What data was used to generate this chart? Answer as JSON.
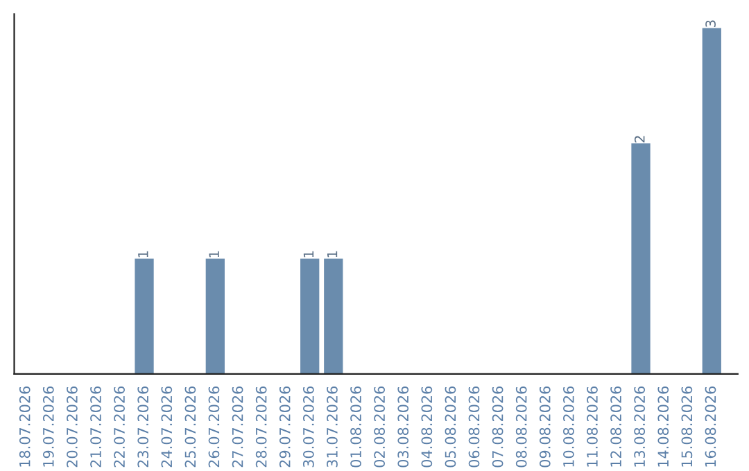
{
  "chart_data": {
    "type": "bar",
    "categories": [
      "18.07.2026",
      "19.07.2026",
      "20.07.2026",
      "21.07.2026",
      "22.07.2026",
      "23.07.2026",
      "24.07.2026",
      "25.07.2026",
      "26.07.2026",
      "27.07.2026",
      "28.07.2026",
      "29.07.2026",
      "30.07.2026",
      "31.07.2026",
      "01.08.2026",
      "02.08.2026",
      "03.08.2026",
      "04.08.2026",
      "05.08.2026",
      "06.08.2026",
      "07.08.2026",
      "08.08.2026",
      "09.08.2026",
      "10.08.2026",
      "11.08.2026",
      "12.08.2026",
      "13.08.2026",
      "14.08.2026",
      "15.08.2026",
      "16.08.2026"
    ],
    "values": [
      0,
      0,
      0,
      0,
      0,
      1,
      0,
      0,
      1,
      0,
      0,
      0,
      1,
      1,
      0,
      0,
      0,
      0,
      0,
      0,
      0,
      0,
      0,
      0,
      0,
      0,
      2,
      0,
      0,
      3
    ],
    "value_labels": [
      null,
      null,
      null,
      null,
      null,
      "1",
      null,
      null,
      "1",
      null,
      null,
      null,
      "1",
      "1",
      null,
      null,
      null,
      null,
      null,
      null,
      null,
      null,
      null,
      null,
      null,
      null,
      "2",
      null,
      null,
      "3"
    ],
    "color": "#6a8cad",
    "tick_labels": "x",
    "grid": false
  }
}
